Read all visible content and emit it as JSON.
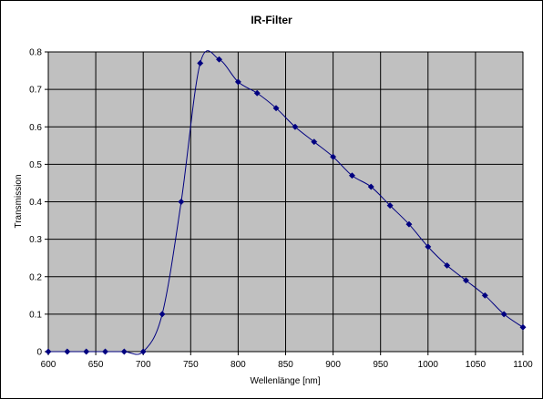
{
  "chart_data": {
    "type": "line",
    "title": "IR-Filter",
    "xlabel": "Wellenlänge [nm]",
    "ylabel": "Transmission",
    "xlim": [
      600,
      1100
    ],
    "ylim": [
      0,
      0.8
    ],
    "x_ticks": [
      600,
      650,
      700,
      750,
      800,
      850,
      900,
      950,
      1000,
      1050,
      1100
    ],
    "y_ticks": [
      0,
      0.1,
      0.2,
      0.3,
      0.4,
      0.5,
      0.6,
      0.7,
      0.8
    ],
    "y_tick_labels": [
      "0",
      "0.1",
      "0.2",
      "0.3",
      "0.4",
      "0.5",
      "0.6",
      "0.7",
      "0.8"
    ],
    "grid": true,
    "legend": "none",
    "plot_background": "#c0c0c0",
    "series_color": "#000080",
    "marker": "diamond",
    "smoothed": true,
    "series": [
      {
        "x": [
          600,
          620,
          640,
          660,
          680,
          700,
          720,
          740,
          760,
          780,
          800,
          820,
          840,
          860,
          880,
          900,
          920,
          940,
          960,
          980,
          1000,
          1020,
          1040,
          1060,
          1080,
          1100
        ],
        "y": [
          0,
          0,
          0,
          0,
          0,
          0,
          0.1,
          0.4,
          0.77,
          0.78,
          0.72,
          0.69,
          0.65,
          0.6,
          0.56,
          0.52,
          0.47,
          0.44,
          0.39,
          0.34,
          0.28,
          0.23,
          0.19,
          0.15,
          0.1,
          0.065
        ]
      }
    ]
  }
}
